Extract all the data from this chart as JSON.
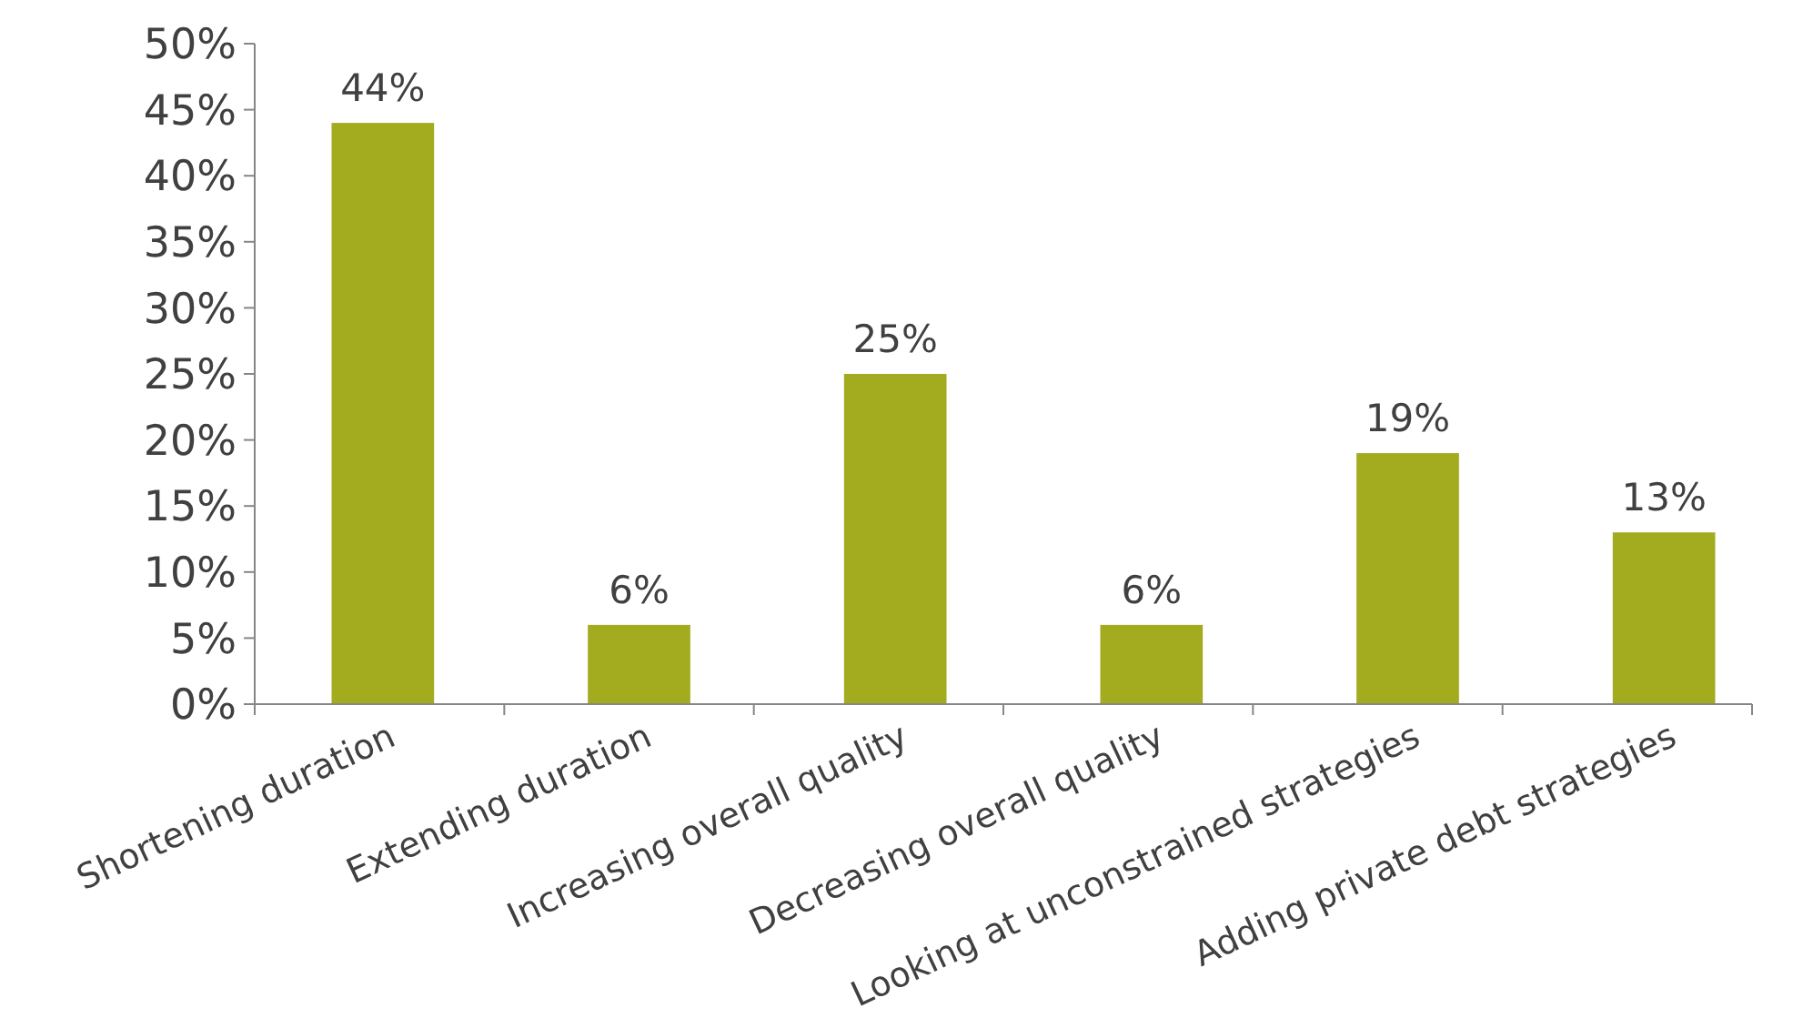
{
  "chart_data": {
    "type": "bar",
    "categories": [
      "Shortening duration",
      "Extending duration",
      "Increasing overall quality",
      "Decreasing overall quality",
      "Looking at unconstrained strategies",
      "Adding private debt strategies"
    ],
    "values": [
      44,
      6,
      25,
      6,
      19,
      13
    ],
    "value_labels": [
      "44%",
      "6%",
      "25%",
      "6%",
      "19%",
      "13%"
    ],
    "color": "#a2ac1e",
    "ylim": [
      0,
      50
    ],
    "yticks": [
      {
        "value": 0,
        "label": "0%"
      },
      {
        "value": 5,
        "label": "5%"
      },
      {
        "value": 10,
        "label": "10%"
      },
      {
        "value": 15,
        "label": "15%"
      },
      {
        "value": 20,
        "label": "20%"
      },
      {
        "value": 25,
        "label": "25%"
      },
      {
        "value": 30,
        "label": "30%"
      },
      {
        "value": 35,
        "label": "35%"
      },
      {
        "value": 40,
        "label": "40%"
      },
      {
        "value": 45,
        "label": "45%"
      },
      {
        "value": 50,
        "label": "50%"
      }
    ],
    "grid": false
  }
}
